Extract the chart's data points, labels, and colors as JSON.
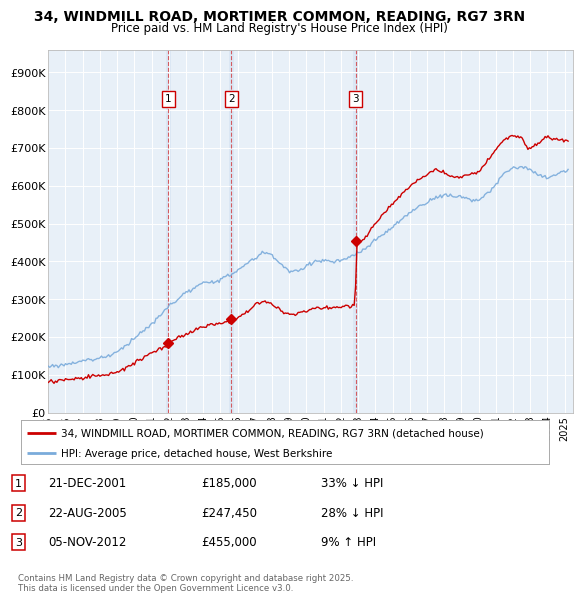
{
  "title": "34, WINDMILL ROAD, MORTIMER COMMON, READING, RG7 3RN",
  "subtitle": "Price paid vs. HM Land Registry's House Price Index (HPI)",
  "red_label": "34, WINDMILL ROAD, MORTIMER COMMON, READING, RG7 3RN (detached house)",
  "blue_label": "HPI: Average price, detached house, West Berkshire",
  "y_ticks": [
    0,
    100000,
    200000,
    300000,
    400000,
    500000,
    600000,
    700000,
    800000,
    900000
  ],
  "y_tick_labels": [
    "£0",
    "£100K",
    "£200K",
    "£300K",
    "£400K",
    "£500K",
    "£600K",
    "£700K",
    "£800K",
    "£900K"
  ],
  "plot_bg_color": "#e8f0f8",
  "red_color": "#cc0000",
  "blue_color": "#7aabdb",
  "shade_color": "#d0e0f0",
  "transaction_markers": [
    {
      "num": 1,
      "date": "21-DEC-2001",
      "price": 185000,
      "price_str": "£185,000",
      "pct": "33%",
      "dir": "↓",
      "x_year": 2001.97
    },
    {
      "num": 2,
      "date": "22-AUG-2005",
      "price": 247450,
      "price_str": "£247,450",
      "pct": "28%",
      "dir": "↓",
      "x_year": 2005.64
    },
    {
      "num": 3,
      "date": "05-NOV-2012",
      "price": 455000,
      "price_str": "£455,000",
      "pct": "9%",
      "dir": "↑",
      "x_year": 2012.85
    }
  ],
  "footnote": "Contains HM Land Registry data © Crown copyright and database right 2025.\nThis data is licensed under the Open Government Licence v3.0.",
  "x_ticks": [
    1995,
    1996,
    1997,
    1998,
    1999,
    2000,
    2001,
    2002,
    2003,
    2004,
    2005,
    2006,
    2007,
    2008,
    2009,
    2010,
    2011,
    2012,
    2013,
    2014,
    2015,
    2016,
    2017,
    2018,
    2019,
    2020,
    2021,
    2022,
    2023,
    2024,
    2025
  ]
}
